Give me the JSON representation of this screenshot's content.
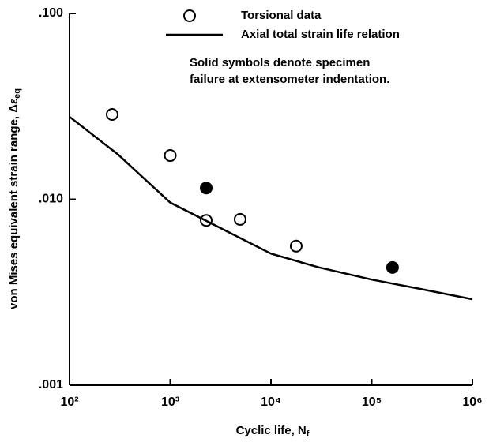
{
  "chart_data": {
    "type": "scatter",
    "x_label": {
      "text": "Cyclic life, N",
      "sub": "f"
    },
    "y_label": {
      "text": "von Mises equivalent strain range, Δε",
      "sub": "eq"
    },
    "note": [
      "Solid symbols denote specimen",
      "failure at extensometer indentation."
    ],
    "xlim": [
      100,
      1000000
    ],
    "ylim": [
      0.001,
      0.1
    ],
    "x_log": true,
    "y_log": true,
    "xticks": [
      {
        "value": 100,
        "label": "10²"
      },
      {
        "value": 1000,
        "label": "10³"
      },
      {
        "value": 10000,
        "label": "10⁴"
      },
      {
        "value": 100000,
        "label": "10⁵"
      },
      {
        "value": 1000000,
        "label": "10⁶"
      }
    ],
    "yticks": [
      {
        "value": 0.001,
        "label": ".001"
      },
      {
        "value": 0.01,
        "label": ".010"
      },
      {
        "value": 0.1,
        "label": ".100"
      }
    ],
    "series": [
      {
        "name": "Torsional data",
        "type": "scatter",
        "color": "#000",
        "x": [
          265,
          1000,
          2275,
          4940,
          17800,
          2275,
          161000
        ],
        "values": [
          0.0286,
          0.0172,
          0.0077,
          0.0078,
          0.0056,
          0.0115,
          0.0043
        ],
        "filled": [
          false,
          false,
          false,
          false,
          false,
          true,
          true
        ]
      },
      {
        "name": "Axial total strain life relation",
        "type": "line",
        "color": "#000",
        "x": [
          100,
          300,
          1000,
          3000,
          10000,
          30000,
          100000,
          300000,
          1000000
        ],
        "values": [
          0.0278,
          0.0175,
          0.0096,
          0.0071,
          0.0051,
          0.0043,
          0.0037,
          0.0033,
          0.0029
        ]
      }
    ]
  }
}
